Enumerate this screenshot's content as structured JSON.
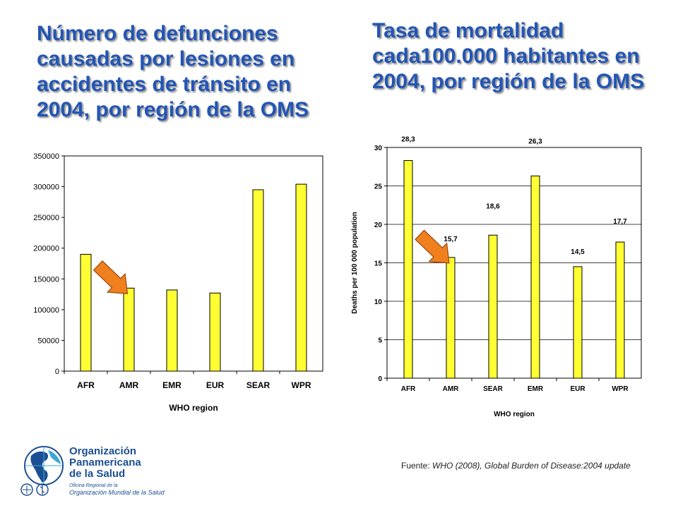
{
  "titles": {
    "left": "Número de defunciones causadas por lesiones en accidentes de tránsito en 2004, por región de la OMS",
    "right": "Tasa de mortalidad cada100.000 habitantes en 2004, por región de la OMS"
  },
  "source": {
    "prefix": "Fuente: ",
    "text": "WHO (2008), Global Burden of Disease:2004 update"
  },
  "logo": {
    "line1": "Organización",
    "line2": "Panamericana",
    "line3": "de la Salud",
    "line4": "Oficina Regional de la",
    "line5": "Organización Mundial de la Salud"
  },
  "colors": {
    "bar_fill": "#ffff33",
    "bar_stroke": "#000000",
    "arrow_fill": "#f07f1e",
    "arrow_stroke": "#9a4a0a",
    "title": "#2255b5",
    "logo_blue": "#1b4f93",
    "logo_accent": "#3fa7d6"
  },
  "chart_data": [
    {
      "type": "bar",
      "categories": [
        "AFR",
        "AMR",
        "EMR",
        "EUR",
        "SEAR",
        "WPR"
      ],
      "values": [
        190000,
        135000,
        132000,
        127000,
        295000,
        304000
      ],
      "xlabel": "WHO region",
      "ylabel": "",
      "ylim": [
        0,
        350000
      ],
      "yticks": [
        "0",
        "50000",
        "100000",
        "150000",
        "200000",
        "250000",
        "300000",
        "350000"
      ],
      "grid": false,
      "annotation": "arrow pointing to AMR"
    },
    {
      "type": "bar",
      "categories": [
        "AFR",
        "AMR",
        "SEAR",
        "EMR",
        "EUR",
        "WPR"
      ],
      "values": [
        28.3,
        15.7,
        18.6,
        26.3,
        14.5,
        17.7
      ],
      "data_labels": [
        "28,3",
        "15,7",
        "18,6",
        "26,3",
        "14,5",
        "17,7"
      ],
      "xlabel": "WHO region",
      "ylabel": "Deaths per 100 000 population",
      "ylim": [
        0,
        30
      ],
      "yticks": [
        "0",
        "5",
        "10",
        "15",
        "20",
        "25",
        "30"
      ],
      "grid": true,
      "annotation": "arrow pointing to AMR"
    }
  ]
}
